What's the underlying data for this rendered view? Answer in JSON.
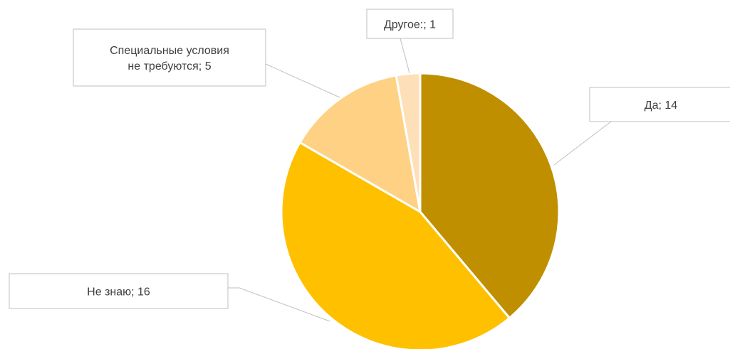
{
  "chart_data": {
    "type": "pie",
    "title": "",
    "slices": [
      {
        "name": "Да",
        "value": 14,
        "color": "#bf8f00",
        "label_lines": [
          "Да; 14"
        ]
      },
      {
        "name": "Не знаю",
        "value": 16,
        "color": "#ffc000",
        "label_lines": [
          "Не знаю; 16"
        ]
      },
      {
        "name": "Специальные условия не требуются",
        "value": 5,
        "color": "#ffd184",
        "label_lines": [
          "Специальные условия",
          "не требуются; 5"
        ]
      },
      {
        "name": "Другое:",
        "value": 1,
        "color": "#fde0b8",
        "label_lines": [
          "Другое:; 1"
        ]
      }
    ],
    "start_angle_deg": 0,
    "direction": "clockwise",
    "legend": "none",
    "data_labels": "outside with leader lines"
  }
}
